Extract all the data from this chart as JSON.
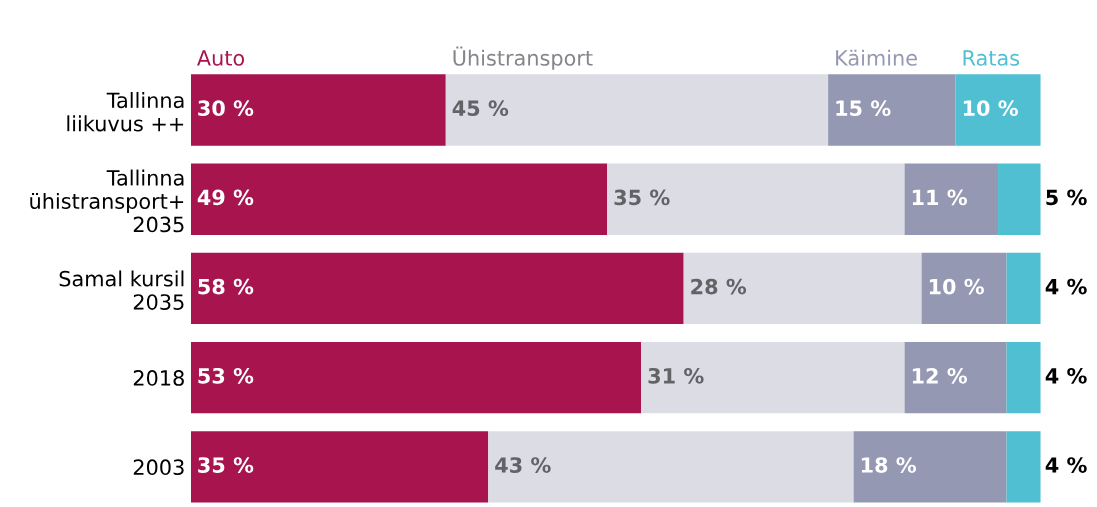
{
  "chart_data": {
    "type": "bar",
    "orientation": "horizontal",
    "stacked": true,
    "legend": false,
    "categories": [
      "Tallinna\nliikuvus ++",
      "Tallinna\nühistransport+\n2035",
      "Samal kursil\n2035",
      "2018",
      "2003"
    ],
    "series": [
      {
        "name": "Auto",
        "color": "#a8144e",
        "values": [
          30,
          49,
          58,
          53,
          35
        ],
        "value_labels": [
          "30 %",
          "49 %",
          "58 %",
          "53 %",
          "35 %"
        ]
      },
      {
        "name": "Ühistransport",
        "color": "#dcdce4",
        "values": [
          45,
          35,
          28,
          31,
          43
        ],
        "value_labels": [
          "45 %",
          "35 %",
          "28 %",
          "31 %",
          "43 %"
        ]
      },
      {
        "name": "Käimine",
        "color": "#9598b2",
        "values": [
          15,
          11,
          10,
          12,
          18
        ],
        "value_labels": [
          "15 %",
          "11 %",
          "10 %",
          "12 %",
          "18 %"
        ]
      },
      {
        "name": "Ratas",
        "color": "#4fbfd1",
        "values": [
          10,
          5,
          4,
          4,
          4
        ],
        "value_labels": [
          "10 %",
          "5 %",
          "4 %",
          "4 %",
          "4 %"
        ]
      }
    ]
  }
}
